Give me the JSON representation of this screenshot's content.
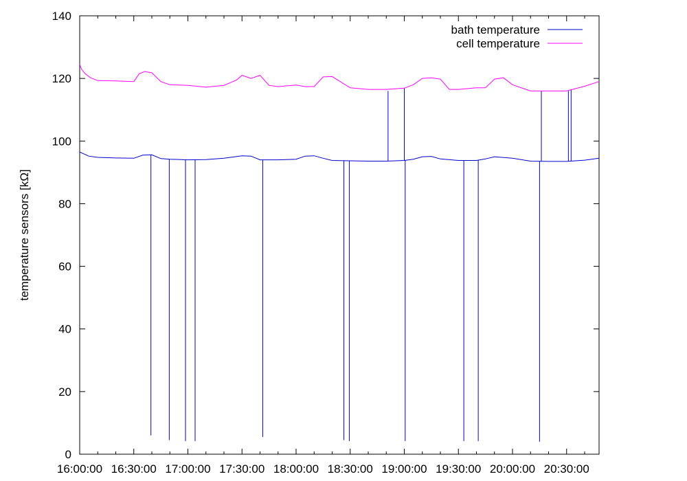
{
  "chart_data": {
    "type": "line",
    "title": "",
    "xlabel": "",
    "ylabel": "temperature sensors [kΩ]",
    "xlim": [
      "16:00:00",
      "20:48:00"
    ],
    "ylim": [
      0,
      140
    ],
    "x_ticks": [
      "16:00:00",
      "16:30:00",
      "17:00:00",
      "17:30:00",
      "18:00:00",
      "18:30:00",
      "19:00:00",
      "19:30:00",
      "20:00:00",
      "20:30:00"
    ],
    "y_ticks": [
      0,
      20,
      40,
      60,
      80,
      100,
      120,
      140
    ],
    "grid": false,
    "legend_position": "top-right",
    "series": [
      {
        "name": "bath temperature",
        "color": "#0000cc",
        "x": [
          "16:00:00",
          "16:05:00",
          "16:10:00",
          "16:20:00",
          "16:30:00",
          "16:35:00",
          "16:40:00",
          "16:45:00",
          "16:50:00",
          "17:00:00",
          "17:10:00",
          "17:20:00",
          "17:30:00",
          "17:35:00",
          "17:40:00",
          "17:50:00",
          "18:00:00",
          "18:05:00",
          "18:10:00",
          "18:15:00",
          "18:20:00",
          "18:30:00",
          "18:40:00",
          "18:50:00",
          "19:00:00",
          "19:05:00",
          "19:10:00",
          "19:15:00",
          "19:20:00",
          "19:30:00",
          "19:40:00",
          "19:45:00",
          "19:50:00",
          "20:00:00",
          "20:10:00",
          "20:20:00",
          "20:30:00",
          "20:40:00",
          "20:48:00"
        ],
        "y": [
          96.5,
          95.2,
          94.8,
          94.6,
          94.5,
          95.5,
          95.6,
          94.4,
          94.2,
          94.0,
          94.1,
          94.5,
          95.3,
          95.2,
          94.0,
          94.0,
          94.2,
          95.2,
          95.3,
          94.5,
          93.8,
          93.7,
          93.6,
          93.6,
          93.8,
          94.2,
          95.0,
          95.1,
          94.3,
          93.8,
          93.8,
          94.3,
          95.0,
          94.5,
          93.6,
          93.5,
          93.5,
          93.9,
          94.5
        ],
        "dropouts": [
          {
            "time": "16:39:30",
            "value": 6
          },
          {
            "time": "16:49:40",
            "value": 4.5
          },
          {
            "time": "16:58:40",
            "value": 4.2
          },
          {
            "time": "17:04:00",
            "value": 4.2
          },
          {
            "time": "17:41:30",
            "value": 5.5
          },
          {
            "time": "18:26:30",
            "value": 4.5
          },
          {
            "time": "18:29:30",
            "value": 4.2
          },
          {
            "time": "18:51:00",
            "value": 116
          },
          {
            "time": "19:00:00",
            "value": 117
          },
          {
            "time": "19:00:30",
            "value": 4.2
          },
          {
            "time": "19:33:00",
            "value": 4.2
          },
          {
            "time": "19:41:00",
            "value": 4.2
          },
          {
            "time": "20:15:00",
            "value": 4.0
          },
          {
            "time": "20:16:00",
            "value": 116
          },
          {
            "time": "20:31:00",
            "value": 116
          },
          {
            "time": "20:32:30",
            "value": 116.5
          }
        ]
      },
      {
        "name": "cell temperature",
        "color": "#ff00ff",
        "x": [
          "16:00:00",
          "16:01:00",
          "16:03:00",
          "16:06:00",
          "16:10:00",
          "16:20:00",
          "16:30:00",
          "16:33:00",
          "16:36:00",
          "16:40:00",
          "16:45:00",
          "16:50:00",
          "17:00:00",
          "17:05:00",
          "17:10:00",
          "17:20:00",
          "17:27:00",
          "17:30:00",
          "17:35:00",
          "17:40:00",
          "17:45:00",
          "17:50:00",
          "18:00:00",
          "18:05:00",
          "18:10:00",
          "18:15:00",
          "18:20:00",
          "18:30:00",
          "18:40:00",
          "18:50:00",
          "19:00:00",
          "19:05:00",
          "19:10:00",
          "19:15:00",
          "19:20:00",
          "19:25:00",
          "19:30:00",
          "19:40:00",
          "19:45:00",
          "19:50:00",
          "19:55:00",
          "20:00:00",
          "20:10:00",
          "20:20:00",
          "20:30:00",
          "20:40:00",
          "20:48:00"
        ],
        "y": [
          124.5,
          123.0,
          121.5,
          120.2,
          119.3,
          119.2,
          119.0,
          121.5,
          122.2,
          121.8,
          119.0,
          118.0,
          117.8,
          117.5,
          117.2,
          117.8,
          119.5,
          121.0,
          120.0,
          121.0,
          117.8,
          117.4,
          117.9,
          117.4,
          117.4,
          120.5,
          120.6,
          117.0,
          116.5,
          116.5,
          116.9,
          118.0,
          120.0,
          120.2,
          119.8,
          116.5,
          116.5,
          117.0,
          117.0,
          119.8,
          120.2,
          118.0,
          116.0,
          116.0,
          116.0,
          117.5,
          119.0
        ]
      }
    ]
  }
}
